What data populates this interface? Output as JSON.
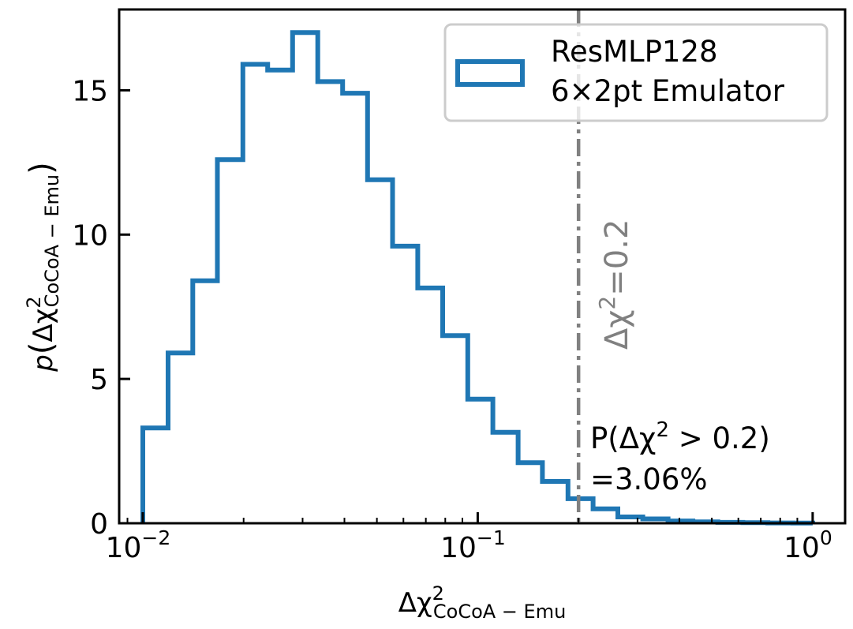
{
  "chart_data": {
    "type": "histogram",
    "xscale": "log",
    "xlim": [
      0.0085,
      1.25
    ],
    "ylim": [
      0,
      17.8
    ],
    "x_ticks": [
      {
        "value": 0.01,
        "base": "10",
        "exp": "−2"
      },
      {
        "value": 0.1,
        "base": "10",
        "exp": "−1"
      },
      {
        "value": 1,
        "base": "10",
        "exp": "0"
      }
    ],
    "y_ticks": [
      {
        "value": 0,
        "label": "0"
      },
      {
        "value": 5,
        "label": "5"
      },
      {
        "value": 10,
        "label": "10"
      },
      {
        "value": 15,
        "label": "15"
      }
    ],
    "xlabel": {
      "main": "Δχ",
      "sup": "2",
      "sub": "CoCoA − Emu"
    },
    "ylabel": {
      "p": "p",
      "open": "(",
      "main": "Δχ",
      "sup": "2",
      "sub": "CoCoA − Emu",
      "close": ")"
    },
    "bin_edges": [
      0.01,
      0.0119,
      0.0141,
      0.0167,
      0.0199,
      0.0236,
      0.028,
      0.0333,
      0.0395,
      0.0469,
      0.0557,
      0.0662,
      0.0786,
      0.0934,
      0.111,
      0.132,
      0.156,
      0.186,
      0.221,
      0.262,
      0.311,
      0.37,
      0.439,
      0.521,
      0.619,
      0.735,
      0.873,
      1.0
    ],
    "values": [
      3.3,
      5.9,
      8.4,
      12.6,
      15.9,
      15.7,
      17.0,
      15.3,
      14.9,
      11.9,
      9.6,
      8.15,
      6.5,
      4.3,
      3.15,
      2.1,
      1.45,
      0.85,
      0.5,
      0.22,
      0.15,
      0.08,
      0.05,
      0.03,
      0.02,
      0.01,
      0.005
    ],
    "series": [
      {
        "name_line1": "ResMLP128",
        "name_line2": "6×2pt Emulator",
        "color": "#1f77b4"
      }
    ],
    "legend_position": "top-right",
    "threshold": {
      "x": 0.2,
      "color": "#808080",
      "label_main": "Δχ",
      "label_sup": "2",
      "label_rest": "=0.2"
    },
    "annotation": {
      "line1_a": "P(Δχ",
      "line1_sup": "2",
      "line1_b": " > 0.2)",
      "line2": "=3.06%"
    }
  }
}
